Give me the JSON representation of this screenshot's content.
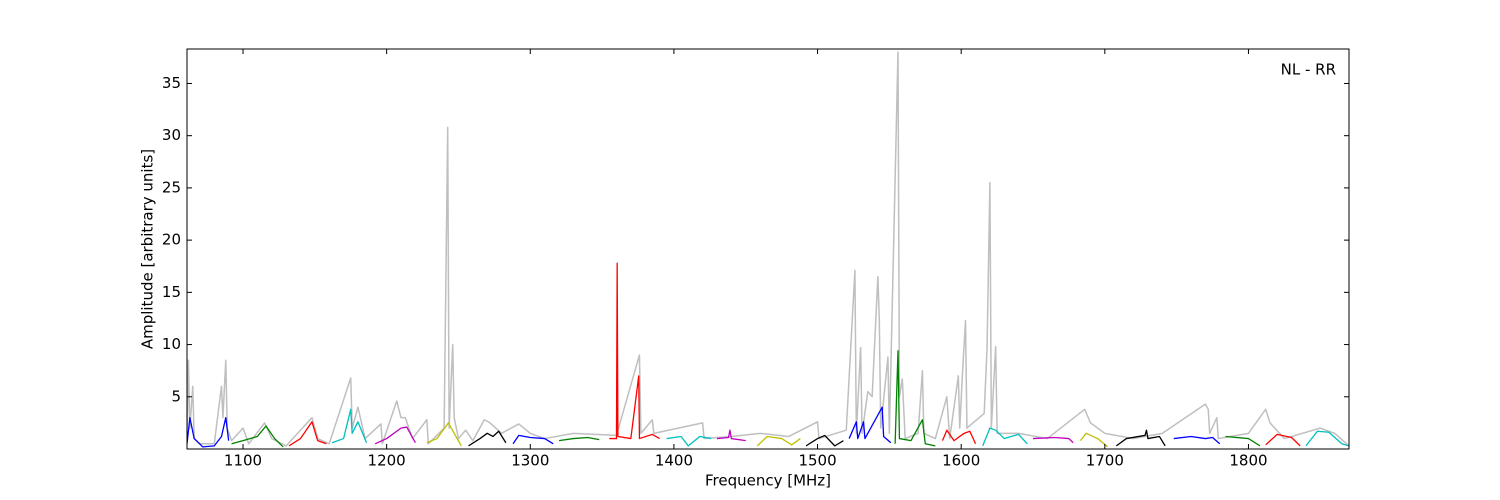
{
  "chart_data": {
    "type": "line",
    "annotation": "NL - RR",
    "xlabel": "Frequency [MHz]",
    "ylabel": "Amplitude [arbitrary units]",
    "xlim": [
      1061,
      1870
    ],
    "ylim": [
      0,
      38.3
    ],
    "xticks": [
      1100,
      1200,
      1300,
      1400,
      1500,
      1600,
      1700,
      1800
    ],
    "yticks": [
      5,
      10,
      15,
      20,
      25,
      30,
      35
    ],
    "series": [
      {
        "color": "#bfbfbf",
        "x": [
          1061,
          1062,
          1063,
          1065,
          1066,
          1070,
          1080,
          1085,
          1086,
          1088,
          1089,
          1092,
          1100,
          1104,
          1115,
          1120,
          1130,
          1148,
          1152,
          1160,
          1175,
          1176,
          1180,
          1185,
          1196,
          1197,
          1207,
          1210,
          1213,
          1218,
          1228,
          1229,
          1240,
          1242.5,
          1243.5,
          1246,
          1247,
          1250,
          1255,
          1260,
          1268,
          1272,
          1280,
          1292,
          1300,
          1310,
          1330,
          1360,
          1376,
          1377,
          1385,
          1386,
          1420,
          1421,
          1440,
          1460,
          1480,
          1500,
          1501,
          1520,
          1526,
          1527,
          1530,
          1531,
          1535,
          1538,
          1542,
          1543,
          1544,
          1549,
          1550,
          1556,
          1557,
          1559,
          1561,
          1570,
          1573,
          1574,
          1582,
          1590,
          1592,
          1598,
          1599,
          1601,
          1603,
          1604,
          1616,
          1618,
          1620,
          1621,
          1624,
          1625,
          1640,
          1660,
          1686,
          1690,
          1700,
          1720,
          1740,
          1770,
          1772,
          1773,
          1778,
          1779,
          1800,
          1812,
          1815,
          1825,
          1850,
          1860,
          1870
        ],
        "values": [
          1,
          8.5,
          2,
          6,
          1,
          0.5,
          0.5,
          6,
          3,
          8.5,
          2,
          0.8,
          2,
          0.5,
          2.5,
          1,
          0.3,
          3,
          1,
          0.5,
          6.8,
          2,
          4,
          1,
          2.4,
          0.5,
          4.6,
          3,
          3,
          1,
          2.8,
          0.5,
          2,
          30.8,
          2,
          10,
          3,
          1,
          1.8,
          0.8,
          2.8,
          2.5,
          1.5,
          2.4,
          1.5,
          1,
          1.5,
          1.3,
          9,
          1.5,
          2.8,
          1.5,
          2.5,
          1,
          1.2,
          1.5,
          1.2,
          2.6,
          1,
          1.8,
          17.1,
          1.5,
          9.7,
          1.5,
          5.5,
          5,
          16.5,
          12.3,
          2,
          8.8,
          1.5,
          38,
          5,
          6.7,
          1,
          1.5,
          7.5,
          1.5,
          1,
          5,
          1,
          7,
          2,
          7.5,
          12.3,
          2,
          3.4,
          9.6,
          25.5,
          2,
          9.8,
          1.5,
          1.5,
          1,
          3.8,
          2.5,
          1.5,
          1,
          1.5,
          4.3,
          3.8,
          1.5,
          3,
          1,
          1.5,
          3.8,
          2.5,
          1,
          2,
          1.5,
          0.3
        ]
      },
      {
        "color": "#0000ff",
        "x": [
          1061,
          1063,
          1066,
          1072,
          1080,
          1085,
          1088,
          1090
        ],
        "values": [
          0.5,
          3,
          1,
          0.2,
          0.3,
          1.2,
          3,
          0.8
        ]
      },
      {
        "color": "#008000",
        "x": [
          1092,
          1100,
          1110,
          1116,
          1122,
          1128
        ],
        "values": [
          0.5,
          0.8,
          1.2,
          2.2,
          1,
          0.2
        ]
      },
      {
        "color": "#ff0000",
        "x": [
          1132,
          1140,
          1148,
          1152,
          1158
        ],
        "values": [
          0.3,
          1,
          2.6,
          0.8,
          0.5
        ]
      },
      {
        "color": "#00bfbf",
        "x": [
          1162,
          1170,
          1175,
          1176,
          1180,
          1186
        ],
        "values": [
          0.6,
          1,
          3.8,
          1.5,
          2.6,
          0.6
        ]
      },
      {
        "color": "#bf00bf",
        "x": [
          1192,
          1200,
          1210,
          1214,
          1220
        ],
        "values": [
          0.5,
          1,
          2,
          2.1,
          0.6
        ]
      },
      {
        "color": "#bfbf00",
        "x": [
          1228,
          1235,
          1243,
          1247,
          1252
        ],
        "values": [
          0.6,
          1,
          2.5,
          1.5,
          0.3
        ]
      },
      {
        "color": "#000000",
        "x": [
          1257,
          1265,
          1270,
          1274,
          1278,
          1283
        ],
        "values": [
          0.3,
          1,
          1.5,
          1.2,
          1.7,
          0.6
        ]
      },
      {
        "color": "#0000ff",
        "x": [
          1288,
          1292,
          1300,
          1310,
          1316
        ],
        "values": [
          0.5,
          1.3,
          1.1,
          1,
          0.5
        ]
      },
      {
        "color": "#008000",
        "x": [
          1320,
          1330,
          1340,
          1348
        ],
        "values": [
          0.8,
          1,
          1.1,
          0.9
        ]
      },
      {
        "color": "#ff0000",
        "x": [
          1355,
          1360,
          1360.5,
          1361,
          1370,
          1375.5,
          1376,
          1385,
          1390
        ],
        "values": [
          1,
          1,
          17.8,
          1.2,
          1,
          7,
          1,
          1.4,
          1
        ]
      },
      {
        "color": "#00bfbf",
        "x": [
          1395,
          1405,
          1410,
          1418,
          1426
        ],
        "values": [
          1,
          1.2,
          0.3,
          1.2,
          1
        ]
      },
      {
        "color": "#bf00bf",
        "x": [
          1430,
          1438,
          1439,
          1440,
          1450
        ],
        "values": [
          1,
          1.1,
          1.8,
          1,
          0.8
        ]
      },
      {
        "color": "#bfbf00",
        "x": [
          1458,
          1465,
          1475,
          1482,
          1488
        ],
        "values": [
          0.3,
          1.2,
          1,
          0.4,
          1
        ]
      },
      {
        "color": "#000000",
        "x": [
          1492,
          1500,
          1505,
          1512,
          1518
        ],
        "values": [
          0.3,
          1,
          1.3,
          0.3,
          0.8
        ]
      },
      {
        "color": "#0000ff",
        "x": [
          1522,
          1527,
          1528,
          1532,
          1533,
          1545,
          1546,
          1551
        ],
        "values": [
          1,
          2.6,
          1,
          2.6,
          1,
          4,
          1.2,
          0.6
        ]
      },
      {
        "color": "#008000",
        "x": [
          1554,
          1556,
          1557,
          1565,
          1573,
          1575,
          1582
        ],
        "values": [
          0.5,
          9.4,
          1,
          0.8,
          2.8,
          0.5,
          0.3
        ]
      },
      {
        "color": "#ff0000",
        "x": [
          1587,
          1590,
          1595,
          1602,
          1606,
          1610
        ],
        "values": [
          0.8,
          1.8,
          0.8,
          1.5,
          1.7,
          0.5
        ]
      },
      {
        "color": "#00bfbf",
        "x": [
          1615,
          1620,
          1624,
          1630,
          1640,
          1646
        ],
        "values": [
          0.3,
          2,
          1.8,
          1,
          1.4,
          0.5
        ]
      },
      {
        "color": "#bf00bf",
        "x": [
          1650,
          1665,
          1675,
          1678
        ],
        "values": [
          1,
          1.1,
          1,
          0.6
        ]
      },
      {
        "color": "#bfbf00",
        "x": [
          1683,
          1687,
          1695,
          1702
        ],
        "values": [
          0.8,
          1.5,
          1,
          0.2
        ]
      },
      {
        "color": "#000000",
        "x": [
          1708,
          1715,
          1728,
          1729,
          1730,
          1738,
          1742
        ],
        "values": [
          0.3,
          1,
          1.3,
          1.8,
          1,
          1.2,
          0.3
        ]
      },
      {
        "color": "#0000ff",
        "x": [
          1748,
          1760,
          1770,
          1775,
          1780
        ],
        "values": [
          1,
          1.2,
          1,
          1.1,
          0.5
        ]
      },
      {
        "color": "#008000",
        "x": [
          1784,
          1800,
          1808
        ],
        "values": [
          1.2,
          1,
          0.3
        ]
      },
      {
        "color": "#ff0000",
        "x": [
          1812,
          1820,
          1830,
          1836
        ],
        "values": [
          0.4,
          1.4,
          1.1,
          0.3
        ]
      },
      {
        "color": "#00bfbf",
        "x": [
          1840,
          1848,
          1856,
          1865,
          1870
        ],
        "values": [
          0.3,
          1.7,
          1.6,
          0.5,
          0.3
        ]
      }
    ]
  }
}
